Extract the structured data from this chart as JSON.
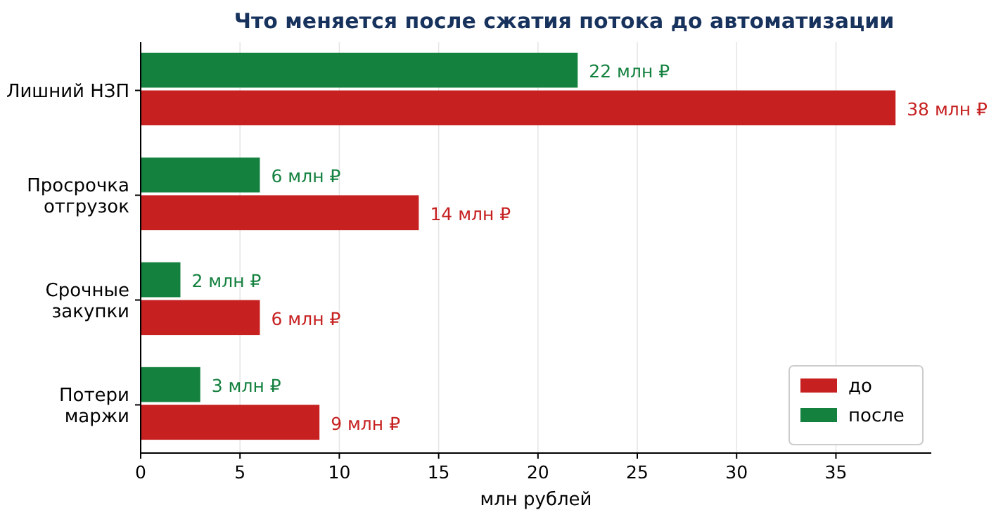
{
  "chart_data": {
    "type": "bar",
    "orientation": "horizontal",
    "title": "Что меняется после сжатия потока до автоматизации",
    "xlabel": "млн рублей",
    "categories": [
      "Лишний НЗП",
      "Просрочка\nотгрузок",
      "Срочные\nзакупки",
      "Потери\nмаржи"
    ],
    "series": [
      {
        "name": "до",
        "color": "#c62020",
        "values": [
          38,
          14,
          6,
          9
        ],
        "value_labels": [
          "38 млн ₽",
          "14 млн ₽",
          "6 млн ₽",
          "9 млн ₽"
        ]
      },
      {
        "name": "после",
        "color": "#14813f",
        "values": [
          22,
          6,
          2,
          3
        ],
        "value_labels": [
          "22 млн ₽",
          "6 млн ₽",
          "2 млн ₽",
          "3 млн ₽"
        ]
      }
    ],
    "xlim": [
      0,
      39.8
    ],
    "xticks": [
      0,
      5,
      10,
      15,
      20,
      25,
      30,
      35
    ],
    "grid": "x",
    "legend": "bottom right"
  }
}
